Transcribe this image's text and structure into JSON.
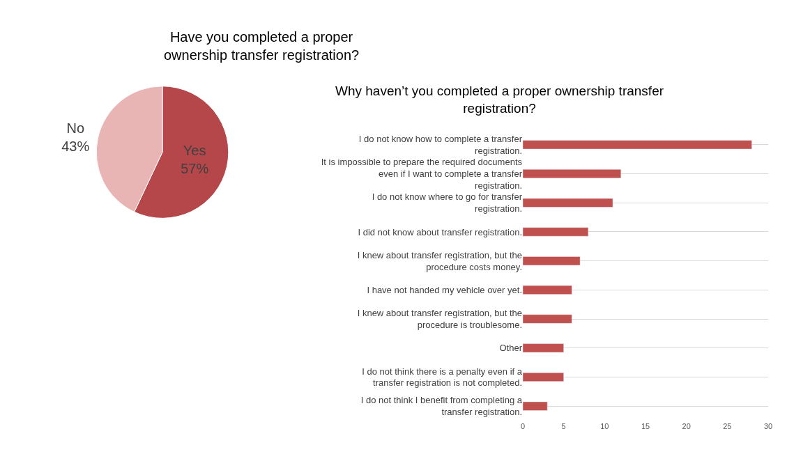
{
  "chart_data": [
    {
      "type": "pie",
      "title": "Have you completed a proper ownership transfer registration?",
      "categories": [
        "Yes",
        "No"
      ],
      "values": [
        57,
        43
      ],
      "colors": [
        "#b5474a",
        "#e8b4b4"
      ],
      "value_labels": [
        "57%",
        "43%"
      ],
      "legend": false
    },
    {
      "type": "bar",
      "orientation": "horizontal",
      "title": "Why haven’t you completed a proper ownership transfer registration?",
      "categories": [
        "I do not know how to complete a transfer registration.",
        "It is impossible to prepare the required documents even if I want to complete a transfer registration.",
        "I do not know where to go for transfer registration.",
        "I did not know about transfer registration.",
        "I knew about transfer registration, but the procedure costs money.",
        "I have not handed my vehicle over yet.",
        "I knew about transfer registration, but the procedure is troublesome.",
        "Other",
        "I do not think there is a penalty even if a transfer registration is not completed.",
        "I do not think I benefit from completing a transfer registration."
      ],
      "values": [
        28,
        12,
        11,
        8,
        7,
        6,
        6,
        5,
        5,
        3
      ],
      "color": "#c0504d",
      "xlim": [
        0,
        30
      ],
      "xticks": [
        0,
        5,
        10,
        15,
        20,
        25,
        30
      ],
      "grid": "y",
      "legend": false
    }
  ]
}
